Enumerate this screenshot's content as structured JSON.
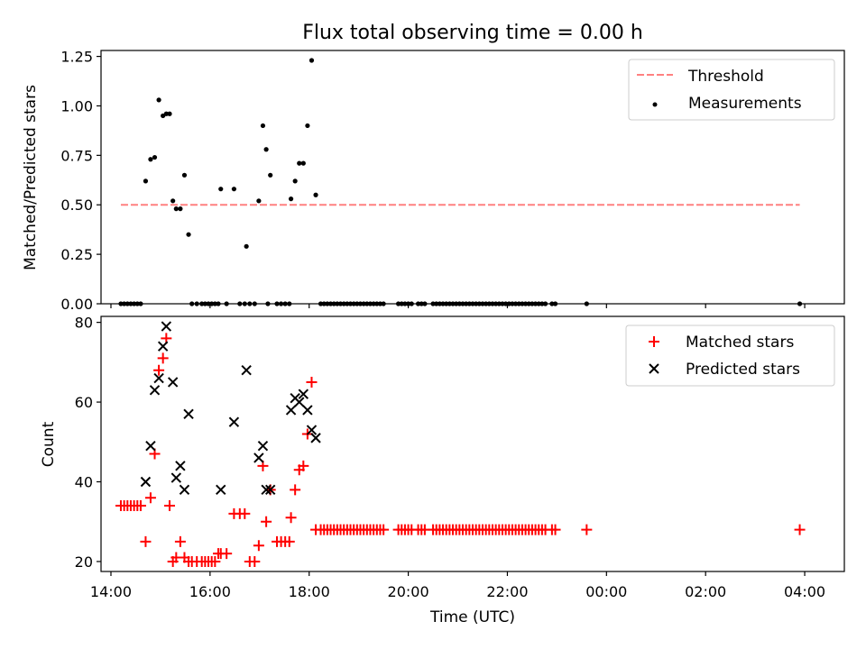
{
  "title": "Flux total observing time = 0.00 h",
  "xlabel": "Time (UTC)",
  "x_ticks": [
    "14:00",
    "16:00",
    "18:00",
    "20:00",
    "22:00",
    "00:00",
    "02:00",
    "04:00"
  ],
  "colors": {
    "threshold": "#ff8080",
    "measurements": "#000000",
    "matched": "#ff0000",
    "predicted": "#000000"
  },
  "chart_data": [
    {
      "type": "scatter",
      "ylabel": "Matched/Predicted stars",
      "xlim": [
        "13:48",
        "28:48"
      ],
      "ylim": [
        0,
        1.28
      ],
      "y_ticks": [
        "0.00",
        "0.25",
        "0.50",
        "0.75",
        "1.00",
        "1.25"
      ],
      "legend": {
        "placement": "top-right",
        "entries": [
          "Threshold",
          "Measurements"
        ]
      },
      "threshold": {
        "name": "Threshold",
        "x": [
          "14:12",
          "27:54"
        ],
        "y": 0.5,
        "style": "dashed"
      },
      "series": [
        {
          "name": "Measurements",
          "marker": "dot",
          "points": [
            [
              "14:12",
              0
            ],
            [
              "14:16",
              0
            ],
            [
              "14:20",
              0
            ],
            [
              "14:24",
              0
            ],
            [
              "14:28",
              0
            ],
            [
              "14:32",
              0
            ],
            [
              "14:36",
              0
            ],
            [
              "14:42",
              0.62
            ],
            [
              "14:48",
              0.73
            ],
            [
              "14:53",
              0.74
            ],
            [
              "14:58",
              1.03
            ],
            [
              "15:03",
              0.95
            ],
            [
              "15:07",
              0.96
            ],
            [
              "15:11",
              0.96
            ],
            [
              "15:15",
              0.52
            ],
            [
              "15:19",
              0.48
            ],
            [
              "15:24",
              0.48
            ],
            [
              "15:29",
              0.65
            ],
            [
              "15:34",
              0.35
            ],
            [
              "15:38",
              0
            ],
            [
              "15:44",
              0
            ],
            [
              "15:50",
              0
            ],
            [
              "15:54",
              0
            ],
            [
              "15:58",
              0
            ],
            [
              "16:02",
              0
            ],
            [
              "16:06",
              0
            ],
            [
              "16:10",
              0
            ],
            [
              "16:13",
              0.58
            ],
            [
              "16:29",
              0.58
            ],
            [
              "16:20",
              0
            ],
            [
              "16:36",
              0
            ],
            [
              "16:42",
              0
            ],
            [
              "16:48",
              0
            ],
            [
              "16:54",
              0
            ],
            [
              "17:10",
              0
            ],
            [
              "16:44",
              0.29
            ],
            [
              "16:59",
              0.52
            ],
            [
              "17:04",
              0.9
            ],
            [
              "17:08",
              0.78
            ],
            [
              "17:13",
              0.65
            ],
            [
              "17:21",
              0
            ],
            [
              "17:26",
              0
            ],
            [
              "17:31",
              0
            ],
            [
              "17:36",
              0
            ],
            [
              "17:38",
              0.53
            ],
            [
              "17:43",
              0.62
            ],
            [
              "17:48",
              0.71
            ],
            [
              "17:53",
              0.71
            ],
            [
              "17:58",
              0.9
            ],
            [
              "18:03",
              1.23
            ],
            [
              "18:08",
              0.55
            ],
            [
              "18:14",
              0
            ],
            [
              "18:18",
              0
            ],
            [
              "18:22",
              0
            ],
            [
              "18:26",
              0
            ],
            [
              "18:30",
              0
            ],
            [
              "18:34",
              0
            ],
            [
              "18:38",
              0
            ],
            [
              "18:42",
              0
            ],
            [
              "18:46",
              0
            ],
            [
              "18:50",
              0
            ],
            [
              "18:54",
              0
            ],
            [
              "18:58",
              0
            ],
            [
              "19:02",
              0
            ],
            [
              "19:06",
              0
            ],
            [
              "19:10",
              0
            ],
            [
              "19:14",
              0
            ],
            [
              "19:18",
              0
            ],
            [
              "19:22",
              0
            ],
            [
              "19:26",
              0
            ],
            [
              "19:30",
              0
            ],
            [
              "19:48",
              0
            ],
            [
              "19:52",
              0
            ],
            [
              "19:56",
              0
            ],
            [
              "20:00",
              0
            ],
            [
              "20:04",
              0
            ],
            [
              "20:12",
              0
            ],
            [
              "20:16",
              0
            ],
            [
              "20:20",
              0
            ],
            [
              "20:30",
              0
            ],
            [
              "20:34",
              0
            ],
            [
              "20:38",
              0
            ],
            [
              "20:42",
              0
            ],
            [
              "20:46",
              0
            ],
            [
              "20:50",
              0
            ],
            [
              "20:54",
              0
            ],
            [
              "20:58",
              0
            ],
            [
              "21:02",
              0
            ],
            [
              "21:06",
              0
            ],
            [
              "21:10",
              0
            ],
            [
              "21:14",
              0
            ],
            [
              "21:18",
              0
            ],
            [
              "21:22",
              0
            ],
            [
              "21:26",
              0
            ],
            [
              "21:30",
              0
            ],
            [
              "21:34",
              0
            ],
            [
              "21:38",
              0
            ],
            [
              "21:42",
              0
            ],
            [
              "21:46",
              0
            ],
            [
              "21:50",
              0
            ],
            [
              "21:54",
              0
            ],
            [
              "21:58",
              0
            ],
            [
              "22:02",
              0
            ],
            [
              "22:06",
              0
            ],
            [
              "22:10",
              0
            ],
            [
              "22:14",
              0
            ],
            [
              "22:18",
              0
            ],
            [
              "22:22",
              0
            ],
            [
              "22:26",
              0
            ],
            [
              "22:30",
              0
            ],
            [
              "22:34",
              0
            ],
            [
              "22:38",
              0
            ],
            [
              "22:42",
              0
            ],
            [
              "22:46",
              0
            ],
            [
              "22:54",
              0
            ],
            [
              "22:58",
              0
            ],
            [
              "23:36",
              0
            ],
            [
              "27:54",
              0
            ]
          ]
        }
      ]
    },
    {
      "type": "scatter",
      "ylabel": "Count",
      "xlim": [
        "13:48",
        "28:48"
      ],
      "ylim": [
        17.5,
        81.5
      ],
      "y_ticks": [
        "20",
        "40",
        "60",
        "80"
      ],
      "legend": {
        "placement": "top-right",
        "entries": [
          "Matched stars",
          "Predicted stars"
        ]
      },
      "series": [
        {
          "name": "Matched stars",
          "marker": "plus",
          "points": [
            [
              "14:12",
              34
            ],
            [
              "14:16",
              34
            ],
            [
              "14:20",
              34
            ],
            [
              "14:24",
              34
            ],
            [
              "14:28",
              34
            ],
            [
              "14:32",
              34
            ],
            [
              "14:36",
              34
            ],
            [
              "14:42",
              25
            ],
            [
              "14:48",
              36
            ],
            [
              "14:53",
              47
            ],
            [
              "14:58",
              68
            ],
            [
              "15:03",
              71
            ],
            [
              "15:07",
              76
            ],
            [
              "15:11",
              34
            ],
            [
              "15:15",
              20
            ],
            [
              "15:19",
              21
            ],
            [
              "15:24",
              25
            ],
            [
              "15:29",
              21
            ],
            [
              "15:34",
              20
            ],
            [
              "15:38",
              20
            ],
            [
              "15:44",
              20
            ],
            [
              "15:50",
              20
            ],
            [
              "15:54",
              20
            ],
            [
              "15:58",
              20
            ],
            [
              "16:02",
              20
            ],
            [
              "16:06",
              20
            ],
            [
              "16:10",
              22
            ],
            [
              "16:13",
              22
            ],
            [
              "16:20",
              22
            ],
            [
              "16:29",
              32
            ],
            [
              "16:36",
              32
            ],
            [
              "16:42",
              32
            ],
            [
              "16:48",
              20
            ],
            [
              "16:54",
              20
            ],
            [
              "16:59",
              24
            ],
            [
              "17:04",
              44
            ],
            [
              "17:08",
              30
            ],
            [
              "17:13",
              38
            ],
            [
              "17:21",
              25
            ],
            [
              "17:26",
              25
            ],
            [
              "17:31",
              25
            ],
            [
              "17:36",
              25
            ],
            [
              "17:38",
              31
            ],
            [
              "17:43",
              38
            ],
            [
              "17:48",
              43
            ],
            [
              "17:53",
              44
            ],
            [
              "17:58",
              52
            ],
            [
              "18:03",
              65
            ],
            [
              "18:08",
              28
            ],
            [
              "18:14",
              28
            ],
            [
              "18:18",
              28
            ],
            [
              "18:22",
              28
            ],
            [
              "18:26",
              28
            ],
            [
              "18:30",
              28
            ],
            [
              "18:34",
              28
            ],
            [
              "18:38",
              28
            ],
            [
              "18:42",
              28
            ],
            [
              "18:46",
              28
            ],
            [
              "18:50",
              28
            ],
            [
              "18:54",
              28
            ],
            [
              "18:58",
              28
            ],
            [
              "19:02",
              28
            ],
            [
              "19:06",
              28
            ],
            [
              "19:10",
              28
            ],
            [
              "19:14",
              28
            ],
            [
              "19:18",
              28
            ],
            [
              "19:22",
              28
            ],
            [
              "19:26",
              28
            ],
            [
              "19:30",
              28
            ],
            [
              "19:48",
              28
            ],
            [
              "19:52",
              28
            ],
            [
              "19:56",
              28
            ],
            [
              "20:00",
              28
            ],
            [
              "20:04",
              28
            ],
            [
              "20:12",
              28
            ],
            [
              "20:16",
              28
            ],
            [
              "20:20",
              28
            ],
            [
              "20:30",
              28
            ],
            [
              "20:34",
              28
            ],
            [
              "20:38",
              28
            ],
            [
              "20:42",
              28
            ],
            [
              "20:46",
              28
            ],
            [
              "20:50",
              28
            ],
            [
              "20:54",
              28
            ],
            [
              "20:58",
              28
            ],
            [
              "21:02",
              28
            ],
            [
              "21:06",
              28
            ],
            [
              "21:10",
              28
            ],
            [
              "21:14",
              28
            ],
            [
              "21:18",
              28
            ],
            [
              "21:22",
              28
            ],
            [
              "21:26",
              28
            ],
            [
              "21:30",
              28
            ],
            [
              "21:34",
              28
            ],
            [
              "21:38",
              28
            ],
            [
              "21:42",
              28
            ],
            [
              "21:46",
              28
            ],
            [
              "21:50",
              28
            ],
            [
              "21:54",
              28
            ],
            [
              "21:58",
              28
            ],
            [
              "22:02",
              28
            ],
            [
              "22:06",
              28
            ],
            [
              "22:10",
              28
            ],
            [
              "22:14",
              28
            ],
            [
              "22:18",
              28
            ],
            [
              "22:22",
              28
            ],
            [
              "22:26",
              28
            ],
            [
              "22:30",
              28
            ],
            [
              "22:34",
              28
            ],
            [
              "22:38",
              28
            ],
            [
              "22:42",
              28
            ],
            [
              "22:46",
              28
            ],
            [
              "22:54",
              28
            ],
            [
              "22:58",
              28
            ],
            [
              "23:36",
              28
            ],
            [
              "27:54",
              28
            ]
          ]
        },
        {
          "name": "Predicted stars",
          "marker": "cross",
          "points": [
            [
              "14:42",
              40
            ],
            [
              "14:48",
              49
            ],
            [
              "14:53",
              63
            ],
            [
              "14:58",
              66
            ],
            [
              "15:03",
              74
            ],
            [
              "15:07",
              79
            ],
            [
              "15:15",
              65
            ],
            [
              "15:19",
              41
            ],
            [
              "15:24",
              44
            ],
            [
              "15:29",
              38
            ],
            [
              "15:34",
              57
            ],
            [
              "16:13",
              38
            ],
            [
              "16:29",
              55
            ],
            [
              "16:44",
              68
            ],
            [
              "16:59",
              46
            ],
            [
              "17:04",
              49
            ],
            [
              "17:08",
              38
            ],
            [
              "17:13",
              38
            ],
            [
              "17:38",
              58
            ],
            [
              "17:43",
              61
            ],
            [
              "17:48",
              60
            ],
            [
              "17:53",
              62
            ],
            [
              "17:58",
              58
            ],
            [
              "18:03",
              53
            ],
            [
              "18:08",
              51
            ]
          ]
        }
      ]
    }
  ]
}
